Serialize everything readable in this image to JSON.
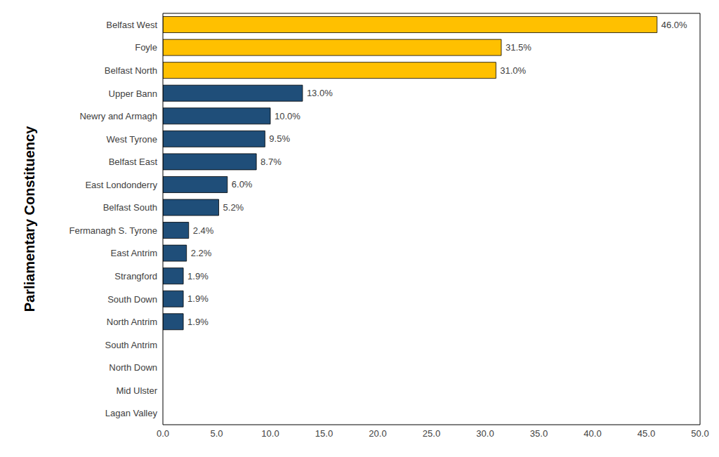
{
  "chart_data": {
    "type": "bar",
    "orientation": "horizontal",
    "y_label": "Parliamentary Constituency",
    "categories": [
      "Belfast West",
      "Foyle",
      "Belfast North",
      "Upper Bann",
      "Newry and Armagh",
      "West Tyrone",
      "Belfast East",
      "East Londonderry",
      "Belfast South",
      "Fermanagh S. Tyrone",
      "East Antrim",
      "Strangford",
      "South Down",
      "North Antrim",
      "South Antrim",
      "North Down",
      "Mid Ulster",
      "Lagan Valley"
    ],
    "values": [
      46.0,
      31.5,
      31.0,
      13.0,
      10.0,
      9.5,
      8.7,
      6.0,
      5.2,
      2.4,
      2.2,
      1.9,
      1.9,
      1.9,
      null,
      null,
      null,
      null
    ],
    "value_labels": [
      "46.0%",
      "31.5%",
      "31.0%",
      "13.0%",
      "10.0%",
      "9.5%",
      "8.7%",
      "6.0%",
      "5.2%",
      "2.4%",
      "2.2%",
      "1.9%",
      "1.9%",
      "1.9%",
      null,
      null,
      null,
      null
    ],
    "colors": [
      "#ffc000",
      "#ffc000",
      "#ffc000",
      "#1f4e79",
      "#1f4e79",
      "#1f4e79",
      "#1f4e79",
      "#1f4e79",
      "#1f4e79",
      "#1f4e79",
      "#1f4e79",
      "#1f4e79",
      "#1f4e79",
      "#1f4e79",
      "#1f4e79",
      "#1f4e79",
      "#1f4e79",
      "#1f4e79"
    ],
    "xlim": [
      0,
      50
    ],
    "xticks": [
      {
        "value": 0,
        "label": "0.0"
      },
      {
        "value": 5,
        "label": "5.0"
      },
      {
        "value": 10,
        "label": "10.0"
      },
      {
        "value": 15,
        "label": "15.0"
      },
      {
        "value": 20,
        "label": "20.0"
      },
      {
        "value": 25,
        "label": "25.0"
      },
      {
        "value": 30,
        "label": "30.0"
      },
      {
        "value": 35,
        "label": "35.0"
      },
      {
        "value": 40,
        "label": "40.0"
      },
      {
        "value": 45,
        "label": "45.0"
      },
      {
        "value": 50,
        "label": "50.0"
      }
    ],
    "grid": false,
    "data_labels": true
  }
}
